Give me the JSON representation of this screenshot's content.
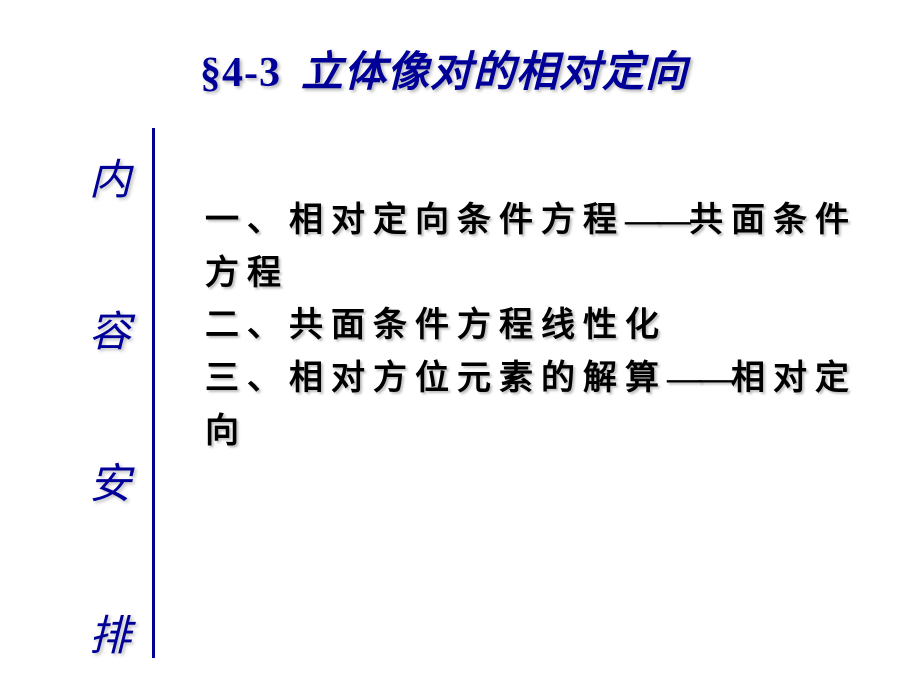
{
  "title": {
    "section": "§4-3",
    "text": "立体像对的相对定向"
  },
  "sidebar": {
    "chars": [
      "内",
      "容",
      "安",
      "排"
    ],
    "gaps": [
      0,
      110,
      110,
      110
    ]
  },
  "content": {
    "items": [
      "一、相对定向条件方程——共面条件方程",
      "二、共面条件方程线性化",
      "三、相对方位元素的解算——相对定向"
    ]
  },
  "colors": {
    "title_color": "#000099",
    "sidebar_color": "#000099",
    "line_color": "#000099",
    "content_color": "#000000",
    "background": "#ffffff",
    "shadow": "rgba(128,128,128,0.5)"
  }
}
